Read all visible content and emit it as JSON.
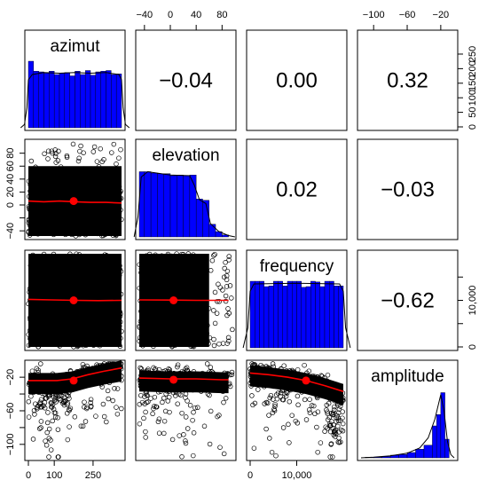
{
  "chart_data": {
    "type": "scatter-matrix",
    "variables": [
      "azimut",
      "elevation",
      "frequency",
      "amplitude"
    ],
    "diagonal": [
      {
        "variable": "azimut",
        "range": [
          0,
          360
        ],
        "histogram": {
          "breaks": [
            0,
            20,
            40,
            60,
            80,
            100,
            120,
            140,
            160,
            180,
            200,
            220,
            240,
            260,
            280,
            300,
            320,
            340,
            360
          ],
          "heights": [
            1.0,
            0.85,
            0.84,
            0.82,
            0.85,
            0.8,
            0.82,
            0.83,
            0.78,
            0.85,
            0.8,
            0.86,
            0.79,
            0.84,
            0.85,
            0.86,
            0.8,
            0.81
          ]
        },
        "density": [
          [
            -30,
            0.0
          ],
          [
            -15,
            0.05
          ],
          [
            -6,
            0.3
          ],
          [
            0,
            0.72
          ],
          [
            15,
            0.8
          ],
          [
            60,
            0.83
          ],
          [
            120,
            0.82
          ],
          [
            180,
            0.83
          ],
          [
            240,
            0.82
          ],
          [
            300,
            0.83
          ],
          [
            350,
            0.8
          ],
          [
            360,
            0.72
          ],
          [
            366,
            0.3
          ],
          [
            375,
            0.05
          ],
          [
            390,
            0.0
          ]
        ]
      },
      {
        "variable": "elevation",
        "range": [
          -48,
          96
        ],
        "histogram": {
          "breaks": [
            -48,
            -40,
            -30,
            -20,
            -10,
            0,
            10,
            20,
            30,
            40,
            50,
            60,
            70,
            80,
            90
          ],
          "heights": [
            0.98,
            0.98,
            0.96,
            0.95,
            0.95,
            0.92,
            0.93,
            0.92,
            0.93,
            0.57,
            0.55,
            0.19,
            0.08,
            0.03
          ]
        },
        "density": [
          [
            -56,
            0.0
          ],
          [
            -50,
            0.3
          ],
          [
            -45,
            0.9
          ],
          [
            -35,
            0.98
          ],
          [
            0,
            0.93
          ],
          [
            30,
            0.92
          ],
          [
            37,
            0.78
          ],
          [
            45,
            0.56
          ],
          [
            55,
            0.5
          ],
          [
            62,
            0.2
          ],
          [
            75,
            0.08
          ],
          [
            90,
            0.02
          ],
          [
            100,
            0.0
          ]
        ]
      },
      {
        "variable": "frequency",
        "range": [
          0,
          20000
        ],
        "histogram": {
          "breaks": [
            0,
            1000,
            2000,
            3000,
            4000,
            5000,
            6000,
            7000,
            8000,
            9000,
            10000,
            11000,
            12000,
            13000,
            14000,
            15000,
            16000,
            17000,
            18000,
            19000,
            20000
          ],
          "heights": [
            1.0,
            1.0,
            1.0,
            0.92,
            0.93,
            1.0,
            1.0,
            0.93,
            1.0,
            1.0,
            1.0,
            0.91,
            0.92,
            1.0,
            0.99,
            0.92,
            1.0,
            1.0,
            0.93,
            0.93
          ]
        },
        "density": [
          [
            -1500,
            0.0
          ],
          [
            -500,
            0.3
          ],
          [
            0,
            0.85
          ],
          [
            800,
            0.96
          ],
          [
            10000,
            0.97
          ],
          [
            19200,
            0.96
          ],
          [
            20000,
            0.85
          ],
          [
            20500,
            0.3
          ],
          [
            21500,
            0.0
          ]
        ]
      },
      {
        "variable": "amplitude",
        "range": [
          -115,
          -4
        ],
        "histogram": {
          "breaks": [
            -110,
            -100,
            -90,
            -80,
            -70,
            -60,
            -50,
            -40,
            -30,
            -25,
            -20,
            -15,
            -10
          ],
          "heights": [
            0.01,
            0.01,
            0.02,
            0.04,
            0.05,
            0.08,
            0.13,
            0.19,
            0.48,
            0.65,
            0.98,
            0.28
          ]
        },
        "density": [
          [
            -115,
            0.0
          ],
          [
            -100,
            0.01
          ],
          [
            -80,
            0.03
          ],
          [
            -60,
            0.07
          ],
          [
            -45,
            0.15
          ],
          [
            -35,
            0.3
          ],
          [
            -27,
            0.58
          ],
          [
            -20,
            0.95
          ],
          [
            -16,
            0.7
          ],
          [
            -12,
            0.25
          ],
          [
            -8,
            0.05
          ],
          [
            -4,
            0.0
          ]
        ]
      }
    ],
    "correlations": [
      {
        "row": 0,
        "col": 1,
        "label": "−0.04"
      },
      {
        "row": 0,
        "col": 2,
        "label": "0.00"
      },
      {
        "row": 0,
        "col": 3,
        "label": "0.32"
      },
      {
        "row": 1,
        "col": 2,
        "label": "0.02"
      },
      {
        "row": 1,
        "col": 3,
        "label": "−0.03"
      },
      {
        "row": 2,
        "col": 3,
        "label": "−0.62"
      }
    ],
    "axis_ticks": {
      "bottom": [
        {
          "col": 0,
          "values": [
            0,
            100,
            250
          ],
          "labels": [
            "0",
            "100",
            "250"
          ]
        },
        {
          "col": 2,
          "values": [
            0,
            10000
          ],
          "labels": [
            "0",
            "10,000"
          ]
        }
      ],
      "top": [
        {
          "col": 1,
          "values": [
            -40,
            0,
            40,
            80
          ],
          "labels": [
            "−40",
            "0",
            "40",
            "80"
          ]
        },
        {
          "col": 3,
          "values": [
            -100,
            -60,
            -20
          ],
          "labels": [
            "−100",
            "−60",
            "−20"
          ]
        }
      ],
      "left": [
        {
          "row": 1,
          "values": [
            -40,
            -20,
            0,
            20,
            40,
            60,
            80
          ],
          "labels": [
            "−40",
            "0",
            "20",
            "40",
            "60",
            "80"
          ],
          "label_values": [
            -40,
            0,
            20,
            40,
            60,
            80
          ]
        },
        {
          "row": 3,
          "values": [
            -100,
            -80,
            -60,
            -40,
            -20
          ],
          "labels": [
            "−100",
            "−60",
            "−20"
          ],
          "label_values": [
            -100,
            -60,
            -20
          ]
        }
      ],
      "right": [
        {
          "row": 0,
          "values": [
            0,
            50,
            100,
            150,
            200,
            250
          ],
          "labels": [
            "0",
            "50",
            "100",
            "150",
            "200",
            "250"
          ],
          "range": [
            0,
            320
          ]
        },
        {
          "row": 2,
          "values": [
            0,
            5000,
            10000,
            15000
          ],
          "labels": [
            "0",
            "10,000"
          ],
          "label_values": [
            0,
            10000
          ],
          "range": [
            0,
            20000
          ]
        }
      ]
    },
    "lower_panels": [
      {
        "row": 1,
        "col": 0,
        "x": "azimut",
        "y": "elevation",
        "fit": [
          [
            0,
            6
          ],
          [
            60,
            5
          ],
          [
            120,
            6
          ],
          [
            180,
            5
          ],
          [
            240,
            4
          ],
          [
            300,
            4
          ],
          [
            360,
            3
          ]
        ],
        "centroid": [
          175,
          6
        ]
      },
      {
        "row": 2,
        "col": 0,
        "x": "azimut",
        "y": "frequency",
        "fit": [
          [
            0,
            10200
          ],
          [
            90,
            10100
          ],
          [
            180,
            10000
          ],
          [
            270,
            9950
          ],
          [
            360,
            10000
          ]
        ],
        "centroid": [
          175,
          10000
        ]
      },
      {
        "row": 2,
        "col": 1,
        "x": "elevation",
        "y": "frequency",
        "fit": [
          [
            -48,
            10100
          ],
          [
            0,
            10050
          ],
          [
            40,
            10000
          ],
          [
            90,
            10000
          ]
        ],
        "centroid": [
          5,
          10000
        ]
      },
      {
        "row": 3,
        "col": 0,
        "x": "azimut",
        "y": "amplitude",
        "fit": [
          [
            0,
            -24
          ],
          [
            60,
            -24
          ],
          [
            110,
            -24
          ],
          [
            170,
            -22
          ],
          [
            230,
            -17
          ],
          [
            290,
            -13
          ],
          [
            360,
            -9
          ]
        ],
        "centroid": [
          175,
          -24
        ]
      },
      {
        "row": 3,
        "col": 1,
        "x": "elevation",
        "y": "amplitude",
        "fit": [
          [
            -48,
            -21
          ],
          [
            0,
            -22
          ],
          [
            40,
            -22
          ],
          [
            80,
            -23
          ],
          [
            90,
            -23
          ]
        ],
        "centroid": [
          5,
          -23
        ]
      },
      {
        "row": 3,
        "col": 2,
        "x": "frequency",
        "y": "amplitude",
        "fit": [
          [
            0,
            -15
          ],
          [
            4000,
            -17
          ],
          [
            8000,
            -20
          ],
          [
            12000,
            -24
          ],
          [
            16000,
            -30
          ],
          [
            20000,
            -37
          ]
        ],
        "centroid": [
          12000,
          -24
        ]
      }
    ],
    "grid": false,
    "colors": {
      "histogram": "#0000ff",
      "fit_line": "#ff0000",
      "centroid": "#ff0000",
      "points": "#000000"
    }
  }
}
